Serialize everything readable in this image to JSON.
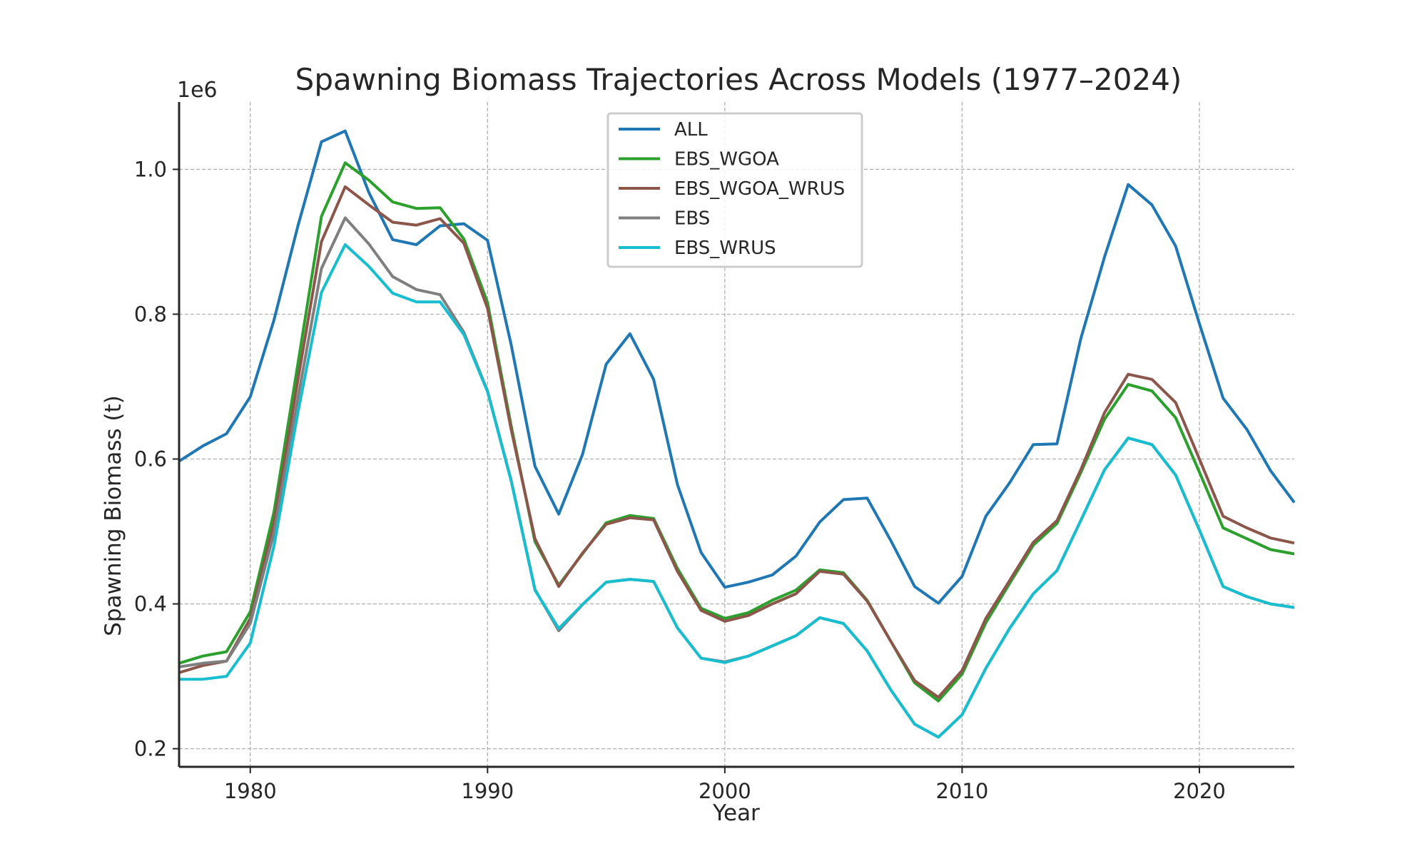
{
  "chart_data": {
    "type": "line",
    "title": "Spawning Biomass Trajectories Across Models (1977–2024)",
    "xlabel": "Year",
    "ylabel": "Spawning Biomass (t)",
    "y_offset_label": "1e6",
    "xlim": [
      1977,
      2024
    ],
    "ylim": [
      0.175,
      1.093
    ],
    "x_ticks": [
      1980,
      1990,
      2000,
      2010,
      2020
    ],
    "x_tick_labels": [
      "1980",
      "1990",
      "2000",
      "2010",
      "2020"
    ],
    "y_ticks": [
      0.2,
      0.4,
      0.6,
      0.8,
      1.0
    ],
    "y_tick_labels": [
      "0.2",
      "0.4",
      "0.6",
      "0.8",
      "1.0"
    ],
    "grid": true,
    "legend_position": "top-center",
    "x": [
      1977,
      1978,
      1979,
      1980,
      1981,
      1982,
      1983,
      1984,
      1985,
      1986,
      1987,
      1988,
      1989,
      1990,
      1991,
      1992,
      1993,
      1994,
      1995,
      1996,
      1997,
      1998,
      1999,
      2000,
      2001,
      2002,
      2003,
      2004,
      2005,
      2006,
      2007,
      2008,
      2009,
      2010,
      2011,
      2012,
      2013,
      2014,
      2015,
      2016,
      2017,
      2018,
      2019,
      2020,
      2021,
      2022,
      2023,
      2024
    ],
    "series": [
      {
        "name": "ALL",
        "color": "#1f77b4",
        "values": [
          0.597,
          0.618,
          0.635,
          0.686,
          0.792,
          0.921,
          1.038,
          1.053,
          0.968,
          0.903,
          0.896,
          0.922,
          0.925,
          0.902,
          0.757,
          0.59,
          0.524,
          0.606,
          0.731,
          0.773,
          0.71,
          0.565,
          0.471,
          0.423,
          0.43,
          0.44,
          0.466,
          0.513,
          0.544,
          0.546,
          0.487,
          0.424,
          0.401,
          0.438,
          0.521,
          0.567,
          0.62,
          0.621,
          0.766,
          0.879,
          0.979,
          0.951,
          0.894,
          0.787,
          0.684,
          0.641,
          0.584,
          0.54
        ]
      },
      {
        "name": "EBS_WGOA",
        "color": "#2ca02c",
        "values": [
          0.318,
          0.328,
          0.334,
          0.389,
          0.527,
          0.73,
          0.935,
          1.009,
          0.985,
          0.955,
          0.946,
          0.947,
          0.904,
          0.816,
          0.645,
          0.486,
          0.426,
          0.469,
          0.512,
          0.522,
          0.518,
          0.449,
          0.394,
          0.38,
          0.388,
          0.405,
          0.419,
          0.447,
          0.443,
          0.405,
          0.348,
          0.291,
          0.266,
          0.303,
          0.374,
          0.428,
          0.481,
          0.511,
          0.581,
          0.655,
          0.703,
          0.694,
          0.657,
          0.582,
          0.505,
          0.49,
          0.475,
          0.469
        ]
      },
      {
        "name": "EBS_WGOA_WRUS",
        "color": "#8c564b",
        "values": [
          0.305,
          0.315,
          0.321,
          0.38,
          0.512,
          0.708,
          0.9,
          0.976,
          0.951,
          0.927,
          0.923,
          0.932,
          0.898,
          0.808,
          0.64,
          0.49,
          0.424,
          0.47,
          0.51,
          0.519,
          0.516,
          0.445,
          0.391,
          0.376,
          0.384,
          0.4,
          0.414,
          0.445,
          0.441,
          0.404,
          0.348,
          0.294,
          0.271,
          0.308,
          0.38,
          0.432,
          0.485,
          0.515,
          0.585,
          0.664,
          0.717,
          0.71,
          0.678,
          0.6,
          0.521,
          0.505,
          0.491,
          0.484
        ]
      },
      {
        "name": "EBS",
        "color": "#7f7f7f",
        "values": [
          0.313,
          0.318,
          0.321,
          0.373,
          0.498,
          0.683,
          0.863,
          0.933,
          0.897,
          0.852,
          0.834,
          0.827,
          0.775,
          0.694,
          0.57,
          0.42,
          0.363,
          0.399,
          0.43,
          0.434,
          0.431,
          0.367,
          0.325,
          0.32,
          0.328,
          0.342,
          0.356,
          0.381,
          0.373,
          0.335,
          0.281,
          0.234,
          0.216,
          0.247,
          0.311,
          0.366,
          0.414,
          0.446,
          0.515,
          0.585,
          0.629,
          0.62,
          0.578,
          0.502,
          0.424,
          0.41,
          0.4,
          0.395
        ]
      },
      {
        "name": "EBS_WRUS",
        "color": "#17becf",
        "values": [
          0.296,
          0.296,
          0.3,
          0.346,
          0.48,
          0.663,
          0.83,
          0.896,
          0.866,
          0.829,
          0.817,
          0.817,
          0.772,
          0.693,
          0.569,
          0.419,
          0.366,
          0.399,
          0.43,
          0.434,
          0.431,
          0.367,
          0.325,
          0.319,
          0.328,
          0.342,
          0.356,
          0.381,
          0.373,
          0.335,
          0.281,
          0.234,
          0.216,
          0.247,
          0.311,
          0.366,
          0.414,
          0.446,
          0.515,
          0.585,
          0.629,
          0.62,
          0.578,
          0.502,
          0.424,
          0.41,
          0.4,
          0.395
        ]
      }
    ]
  }
}
